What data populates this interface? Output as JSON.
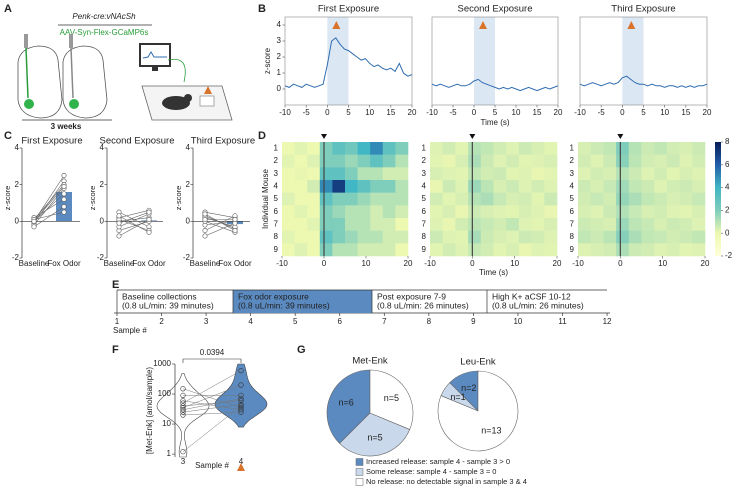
{
  "panel_labels": [
    "A",
    "B",
    "C",
    "D",
    "E",
    "F",
    "G"
  ],
  "schematic": {
    "construct": "Penk-cre:vNAcSh",
    "virus": "AAV-Syn-Flex-GCaMP6s",
    "duration": "3 weeks"
  },
  "timeline": {
    "segments": [
      {
        "title": "Baseline collections",
        "detail": "(0.8 uL/min: 39 minutes)"
      },
      {
        "title": "Fox odor exposure",
        "detail": "(0.8 uL/min: 39 minutes)"
      },
      {
        "title": "Post exposure 7-9",
        "detail": "(0.8 uL/min: 26 minutes)"
      },
      {
        "title": "High K+ aCSF 10-12",
        "detail": "(0.8 uL/min: 26 minutes)"
      }
    ],
    "ticks": [
      1,
      2,
      3,
      4,
      5,
      6,
      7,
      8,
      9,
      10,
      11,
      12
    ],
    "axis_label": "Sample #"
  },
  "chart_data": [
    {
      "type": "line",
      "title": "First Exposure",
      "ylabel": "z-score",
      "x": [
        -10,
        -9,
        -8,
        -7,
        -6,
        -5,
        -4,
        -3,
        -2,
        -1,
        0,
        1,
        2,
        3,
        4,
        5,
        6,
        7,
        8,
        9,
        10,
        11,
        12,
        13,
        14,
        15,
        16,
        17,
        18,
        19,
        20
      ],
      "values": [
        0.2,
        0.1,
        0.3,
        0.2,
        0.1,
        0.3,
        0.2,
        0.1,
        0.2,
        0.3,
        1.5,
        3.0,
        3.2,
        2.8,
        2.5,
        2.4,
        2.2,
        2.0,
        1.8,
        1.9,
        1.6,
        1.4,
        1.5,
        1.3,
        1.2,
        1.3,
        1.1,
        1.6,
        1.0,
        0.8,
        0.9
      ],
      "color": "#2f6db0",
      "shade": [
        0,
        5
      ],
      "shade_color": "#dce7f4",
      "xlim": [
        -10,
        20
      ],
      "ylim": [
        -1,
        4.5
      ],
      "xticks": [
        -10,
        -5,
        0,
        5,
        10,
        15,
        20
      ],
      "yticks": [
        0,
        1,
        2,
        3,
        4
      ]
    },
    {
      "type": "line",
      "title": "Second Exposure",
      "xlabel": "Time (s)",
      "x": [
        -10,
        -9,
        -8,
        -7,
        -6,
        -5,
        -4,
        -3,
        -2,
        -1,
        0,
        1,
        2,
        3,
        4,
        5,
        6,
        7,
        8,
        9,
        10,
        11,
        12,
        13,
        14,
        15,
        16,
        17,
        18,
        19,
        20
      ],
      "values": [
        0.3,
        0.2,
        0.3,
        0.2,
        0.1,
        0.2,
        0.3,
        0.2,
        0.2,
        0.3,
        0.5,
        0.6,
        0.4,
        0.3,
        0.2,
        0.1,
        0.0,
        0.1,
        0.0,
        0.1,
        0.0,
        -0.1,
        0.0,
        0.1,
        0.0,
        -0.1,
        0.0,
        0.1,
        0.0,
        0.1,
        0.2
      ],
      "color": "#2f6db0",
      "shade": [
        0,
        5
      ],
      "shade_color": "#dce7f4",
      "xlim": [
        -10,
        20
      ],
      "ylim": [
        -1,
        4.5
      ],
      "xticks": [
        -10,
        -5,
        0,
        5,
        10,
        15,
        20
      ]
    },
    {
      "type": "line",
      "title": "Third Exposure",
      "x": [
        -10,
        -9,
        -8,
        -7,
        -6,
        -5,
        -4,
        -3,
        -2,
        -1,
        0,
        1,
        2,
        3,
        4,
        5,
        6,
        7,
        8,
        9,
        10,
        11,
        12,
        13,
        14,
        15,
        16,
        17,
        18,
        19,
        20
      ],
      "values": [
        0.3,
        0.2,
        0.3,
        0.4,
        0.3,
        0.2,
        0.3,
        0.4,
        0.3,
        0.4,
        0.7,
        0.8,
        0.6,
        0.4,
        0.3,
        0.3,
        0.2,
        0.3,
        0.2,
        0.2,
        0.1,
        0.2,
        0.2,
        0.1,
        0.2,
        0.1,
        0.2,
        0.1,
        0.2,
        0.2,
        0.3
      ],
      "color": "#2f6db0",
      "shade": [
        0,
        5
      ],
      "shade_color": "#dce7f4",
      "xlim": [
        -10,
        20
      ],
      "ylim": [
        -1,
        4.5
      ],
      "xticks": [
        -10,
        -5,
        0,
        5,
        10,
        15,
        20
      ]
    },
    {
      "type": "paired",
      "title": "First Exposure",
      "ylabel": "z-score",
      "categories": [
        "Baseline",
        "Fox Odor"
      ],
      "pairs": [
        [
          0,
          2.5
        ],
        [
          -0.1,
          2.2
        ],
        [
          0.1,
          2.0
        ],
        [
          -0.2,
          1.8
        ],
        [
          0,
          1.5
        ],
        [
          0.2,
          1.2
        ],
        [
          -0.3,
          0.8
        ],
        [
          0.1,
          0.5
        ],
        [
          0,
          1.9
        ]
      ],
      "bar": 1.6,
      "bar_color": "#5b8ac0",
      "point_color": "#555555",
      "ylim": [
        -2,
        4
      ],
      "yticks": [
        -2,
        0,
        2,
        4
      ]
    },
    {
      "type": "paired",
      "title": "Second Exposure",
      "ylabel": "z-score",
      "categories": [
        "Baseline",
        "Fox Odor"
      ],
      "pairs": [
        [
          0.2,
          0.6
        ],
        [
          0,
          0.2
        ],
        [
          -0.5,
          0
        ],
        [
          0.5,
          -0.3
        ],
        [
          -0.3,
          0.4
        ],
        [
          0.1,
          -0.5
        ],
        [
          -0.1,
          0.5
        ],
        [
          -0.8,
          0.1
        ],
        [
          0.3,
          -0.6
        ]
      ],
      "bar": 0.05,
      "bar_color": "#5b8ac0",
      "point_color": "#555555",
      "ylim": [
        -2,
        4
      ],
      "yticks": [
        -2,
        0,
        2,
        4
      ]
    },
    {
      "type": "paired",
      "title": "Third Exposure",
      "ylabel": "z-score",
      "categories": [
        "Baseline",
        "Fox Odor"
      ],
      "pairs": [
        [
          0.5,
          0.2
        ],
        [
          0.3,
          -0.4
        ],
        [
          -0.2,
          0
        ],
        [
          0,
          -0.6
        ],
        [
          -0.5,
          0.3
        ],
        [
          0.2,
          -0.3
        ],
        [
          -0.8,
          -0.1
        ],
        [
          0.4,
          -0.5
        ],
        [
          0.1,
          0.1
        ]
      ],
      "bar": -0.15,
      "bar_color": "#5b8ac0",
      "point_color": "#555555",
      "ylim": [
        -2,
        4
      ],
      "yticks": [
        -2,
        0,
        2,
        4
      ]
    },
    {
      "type": "heatmap",
      "ylabel": "Individual Mouse",
      "row_labels": [
        1,
        2,
        3,
        4,
        5,
        6,
        7,
        8,
        9
      ],
      "z": [
        [
          0,
          0.2,
          0,
          2,
          3,
          2.5,
          4,
          5,
          3,
          2
        ],
        [
          0.2,
          0,
          0.3,
          2,
          2,
          1.5,
          2,
          3,
          2,
          1
        ],
        [
          0,
          0.1,
          0,
          3,
          3,
          2,
          1,
          1,
          0.5,
          0.5
        ],
        [
          0,
          0,
          0.5,
          5,
          7,
          4,
          3,
          2,
          2,
          1
        ],
        [
          0.3,
          0,
          0,
          3,
          2,
          2,
          1.5,
          1,
          1,
          1
        ],
        [
          0,
          0.2,
          0,
          2,
          1.5,
          1,
          1,
          0.5,
          1,
          0.5
        ],
        [
          0,
          0,
          0.2,
          2,
          2,
          1,
          1,
          0.5,
          0.5,
          0
        ],
        [
          0.2,
          0,
          0,
          3,
          2,
          1.5,
          1,
          1,
          0.5,
          0.5
        ],
        [
          0,
          0.3,
          0,
          2,
          1,
          1,
          0.5,
          0.5,
          0.5,
          0
        ]
      ],
      "xlim": [
        -10,
        20
      ],
      "xticks": [
        -10,
        0,
        10,
        20
      ],
      "zlim": [
        -2,
        8
      ],
      "marker_x": 0,
      "colorscale": [
        "#ffffd9",
        "#edf8b1",
        "#7fcdbb",
        "#41b6c4",
        "#225ea8",
        "#081d58"
      ]
    },
    {
      "type": "heatmap",
      "xlabel": "Time (s)",
      "row_labels": [
        1,
        2,
        3,
        4,
        5,
        6,
        7,
        8,
        9
      ],
      "z": [
        [
          0.3,
          0.5,
          0.2,
          1,
          0.8,
          0.5,
          0.3,
          0.6,
          0.4,
          0.2
        ],
        [
          0.2,
          0.1,
          0.4,
          1.2,
          0.6,
          0.3,
          0.5,
          0.2,
          0.3,
          0.4
        ],
        [
          0.4,
          0.3,
          0.2,
          0.8,
          0.5,
          0.6,
          0.2,
          0.3,
          0.1,
          0.2
        ],
        [
          0.1,
          0.6,
          0.3,
          1.5,
          0.9,
          0.4,
          0.6,
          0.3,
          0.5,
          0.3
        ],
        [
          0.5,
          0.2,
          0.4,
          1,
          1.2,
          0.7,
          0.4,
          0.5,
          0.2,
          0.6
        ],
        [
          0.2,
          0.4,
          0.1,
          0.6,
          0.4,
          0.3,
          0.2,
          0.4,
          0.3,
          0.1
        ],
        [
          0.3,
          0.1,
          0.5,
          0.9,
          0.7,
          0.5,
          0.8,
          0.3,
          0.2,
          0.4
        ],
        [
          0.6,
          0.3,
          0.2,
          1.3,
          0.6,
          0.4,
          0.3,
          0.6,
          0.5,
          0.3
        ],
        [
          0.2,
          0.5,
          0.3,
          0.7,
          0.5,
          0.2,
          0.4,
          0.1,
          0.3,
          0.2
        ]
      ],
      "xlim": [
        -10,
        20
      ],
      "xticks": [
        -10,
        0,
        10,
        20
      ],
      "zlim": [
        -2,
        8
      ],
      "marker_x": 0,
      "colorscale": [
        "#ffffd9",
        "#edf8b1",
        "#7fcdbb",
        "#41b6c4",
        "#225ea8",
        "#081d58"
      ]
    },
    {
      "type": "heatmap",
      "row_labels": [
        1,
        2,
        3,
        4,
        5,
        6,
        7,
        8,
        9
      ],
      "z": [
        [
          0.4,
          0.6,
          0.8,
          2,
          1,
          0.6,
          0.8,
          0.5,
          0.4,
          0.6
        ],
        [
          0.5,
          0.3,
          0.6,
          1.8,
          0.9,
          0.5,
          0.4,
          0.6,
          0.3,
          0.5
        ],
        [
          0.3,
          0.5,
          0.4,
          1,
          0.6,
          0.3,
          0.5,
          0.2,
          0.4,
          0.3
        ],
        [
          0.6,
          0.4,
          0.7,
          1.4,
          0.8,
          0.6,
          0.3,
          0.5,
          0.6,
          0.4
        ],
        [
          0.5,
          0.7,
          0.5,
          1.6,
          1.2,
          0.8,
          0.6,
          0.4,
          0.5,
          0.7
        ],
        [
          0.4,
          0.3,
          0.6,
          1.1,
          0.7,
          0.4,
          0.5,
          0.3,
          0.2,
          0.4
        ],
        [
          0.6,
          0.5,
          0.4,
          1.5,
          0.9,
          0.7,
          0.4,
          0.6,
          0.5,
          0.3
        ],
        [
          0.8,
          0.6,
          0.9,
          1.9,
          1.2,
          0.8,
          0.7,
          0.5,
          0.6,
          0.8
        ],
        [
          0.3,
          0.4,
          0.5,
          1.2,
          0.6,
          0.5,
          0.3,
          0.4,
          0.2,
          0.3
        ]
      ],
      "xlim": [
        -10,
        20
      ],
      "xticks": [
        -10,
        0,
        10,
        20
      ],
      "zlim": [
        -2,
        8
      ],
      "zticks": [
        -2,
        0,
        2,
        4,
        6,
        8
      ],
      "marker_x": 0,
      "colorscale": [
        "#ffffd9",
        "#edf8b1",
        "#7fcdbb",
        "#41b6c4",
        "#225ea8",
        "#081d58"
      ]
    },
    {
      "type": "violin",
      "categories": [
        "3",
        "4"
      ],
      "ylabel": "[Met-Enk] (amol/sample)",
      "xlabel": "Sample #",
      "series": [
        {
          "values": [
            1.2,
            25,
            40,
            60,
            30,
            35,
            50,
            90,
            150,
            20
          ],
          "color": "#ffffff"
        },
        {
          "values": [
            40,
            45,
            60,
            30,
            70,
            200,
            600,
            90,
            35,
            25
          ],
          "color": "#5b8ac0"
        }
      ],
      "log_y": true,
      "ylim": [
        0.8,
        1000
      ],
      "yticks": [
        1,
        10,
        100,
        1000
      ],
      "annotation": "0.0394"
    },
    {
      "type": "pie",
      "title": "Met-Enk",
      "categories": [
        "Increased release: sample 4 - sample 3 > 0",
        "Some release: sample 4 - sample 3 ≈ 0",
        "No release: no detectable signal in sample 3 & 4"
      ],
      "values": [
        6,
        5,
        5
      ],
      "value_labels": [
        "n=6",
        "n=5",
        "n=5"
      ],
      "colors": [
        "#5b8ac0",
        "#c9d8ea",
        "#ffffff"
      ]
    },
    {
      "type": "pie",
      "title": "Leu-Enk",
      "values": [
        2,
        1,
        13
      ],
      "value_labels": [
        "n=2",
        "n=1",
        "n=13"
      ],
      "colors": [
        "#5b8ac0",
        "#c9d8ea",
        "#ffffff"
      ]
    }
  ]
}
